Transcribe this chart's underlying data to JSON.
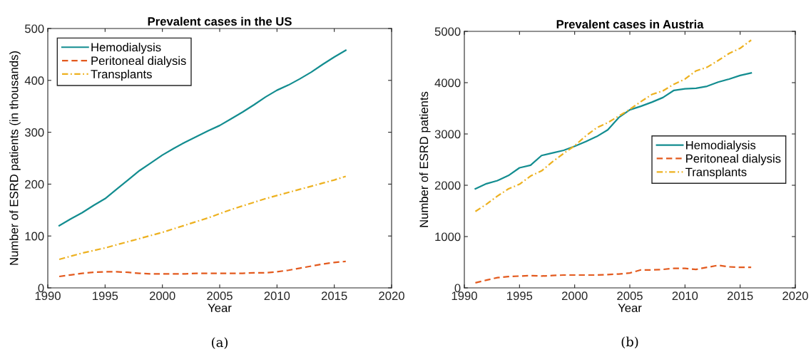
{
  "chart_data": [
    {
      "type": "line",
      "title": "Prevalent cases in the US",
      "xlabel": "Year",
      "ylabel": "Number of ESRD patients (in thousands)",
      "annotations": [
        "(a)"
      ],
      "x": [
        1991,
        1992,
        1993,
        1994,
        1995,
        1996,
        1997,
        1998,
        1999,
        2000,
        2001,
        2002,
        2003,
        2004,
        2005,
        2006,
        2007,
        2008,
        2009,
        2010,
        2011,
        2012,
        2013,
        2014,
        2015,
        2016
      ],
      "series": [
        {
          "name": "Hemodialysis",
          "color": "#138d90",
          "line_style": "solid",
          "values": [
            120,
            133,
            145,
            159,
            172,
            190,
            208,
            226,
            241,
            256,
            269,
            281,
            292,
            303,
            313,
            326,
            339,
            353,
            368,
            381,
            391,
            403,
            416,
            431,
            445,
            458
          ]
        },
        {
          "name": "Peritoneal dialysis",
          "color": "#e35a1e",
          "line_style": "dashed",
          "values": [
            22,
            25,
            28,
            30,
            31,
            31,
            30,
            28,
            27,
            27,
            27,
            27,
            28,
            28,
            28,
            28,
            28,
            29,
            29,
            31,
            34,
            38,
            42,
            46,
            49,
            51
          ]
        },
        {
          "name": "Transplants",
          "color": "#edb120",
          "line_style": "dashdot",
          "values": [
            55,
            61,
            67,
            72,
            77,
            83,
            89,
            95,
            101,
            107,
            114,
            121,
            128,
            135,
            143,
            151,
            158,
            165,
            172,
            178,
            184,
            190,
            196,
            202,
            208,
            215
          ]
        }
      ],
      "xlim": [
        1990,
        2020
      ],
      "xticks": [
        1990,
        1995,
        2000,
        2005,
        2010,
        2015,
        2020
      ],
      "ylim": [
        0,
        500
      ],
      "yticks": [
        0,
        100,
        200,
        300,
        400,
        500
      ],
      "grid": false,
      "legend": "top left"
    },
    {
      "type": "line",
      "title": "Prevalent cases in Austria",
      "xlabel": "Year",
      "ylabel": "Number of ESRD patients",
      "annotations": [
        "(b)"
      ],
      "x": [
        1991,
        1992,
        1993,
        1994,
        1995,
        1996,
        1997,
        1998,
        1999,
        2000,
        2001,
        2002,
        2003,
        2004,
        2005,
        2006,
        2007,
        2008,
        2009,
        2010,
        2011,
        2012,
        2013,
        2014,
        2015,
        2016
      ],
      "series": [
        {
          "name": "Hemodialysis",
          "color": "#138d90",
          "line_style": "solid",
          "values": [
            1930,
            2030,
            2090,
            2190,
            2340,
            2390,
            2580,
            2630,
            2680,
            2760,
            2850,
            2950,
            3080,
            3320,
            3470,
            3540,
            3620,
            3710,
            3850,
            3880,
            3890,
            3930,
            4010,
            4070,
            4140,
            4190
          ]
        },
        {
          "name": "Peritoneal dialysis",
          "color": "#e35a1e",
          "line_style": "dashed",
          "values": [
            100,
            150,
            200,
            220,
            230,
            240,
            230,
            240,
            250,
            250,
            250,
            250,
            260,
            270,
            290,
            350,
            350,
            360,
            380,
            380,
            360,
            400,
            440,
            410,
            400,
            400
          ]
        },
        {
          "name": "Transplants",
          "color": "#edb120",
          "line_style": "dashdot",
          "values": [
            1490,
            1630,
            1790,
            1930,
            2020,
            2180,
            2280,
            2460,
            2620,
            2770,
            2960,
            3120,
            3220,
            3350,
            3480,
            3630,
            3770,
            3840,
            3970,
            4070,
            4230,
            4300,
            4430,
            4570,
            4670,
            4830
          ]
        }
      ],
      "xlim": [
        1990,
        2020
      ],
      "xticks": [
        1990,
        1995,
        2000,
        2005,
        2010,
        2015,
        2020
      ],
      "ylim": [
        0,
        5000
      ],
      "yticks": [
        0,
        1000,
        2000,
        3000,
        4000,
        5000
      ],
      "grid": false,
      "legend": "right"
    }
  ]
}
